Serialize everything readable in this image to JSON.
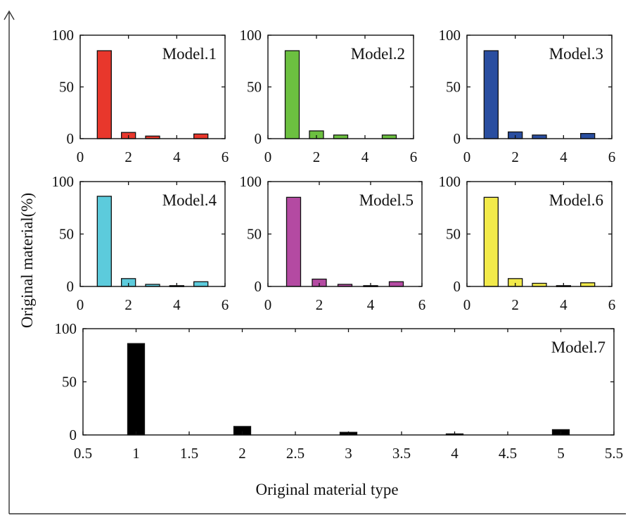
{
  "figure": {
    "xlabel": "Original material type",
    "ylabel": "Original material(%)"
  },
  "chart_data": [
    {
      "type": "bar",
      "title": "Model.1",
      "color": "#e8372c",
      "xlim": [
        0,
        6
      ],
      "ylim": [
        0,
        100
      ],
      "xticks": [
        "0",
        "2",
        "4",
        "6"
      ],
      "yticks": [
        "0",
        "50",
        "100"
      ],
      "x": [
        1,
        2,
        3,
        4,
        5
      ],
      "values": [
        85,
        6,
        2.5,
        0,
        4.5
      ]
    },
    {
      "type": "bar",
      "title": "Model.2",
      "color": "#6cc040",
      "xlim": [
        0,
        6
      ],
      "ylim": [
        0,
        100
      ],
      "xticks": [
        "0",
        "2",
        "4",
        "6"
      ],
      "yticks": [
        "0",
        "50",
        "100"
      ],
      "x": [
        1,
        2,
        3,
        4,
        5
      ],
      "values": [
        85,
        7.5,
        3.5,
        0,
        3.5
      ]
    },
    {
      "type": "bar",
      "title": "Model.3",
      "color": "#2a4ea0",
      "xlim": [
        0,
        6
      ],
      "ylim": [
        0,
        100
      ],
      "xticks": [
        "0",
        "2",
        "4",
        "6"
      ],
      "yticks": [
        "0",
        "50",
        "100"
      ],
      "x": [
        1,
        2,
        3,
        4,
        5
      ],
      "values": [
        85,
        6.5,
        3.5,
        0,
        5
      ]
    },
    {
      "type": "bar",
      "title": "Model.4",
      "color": "#5ccbdc",
      "xlim": [
        0,
        6
      ],
      "ylim": [
        0,
        100
      ],
      "xticks": [
        "0",
        "2",
        "4",
        "6"
      ],
      "yticks": [
        "0",
        "50",
        "100"
      ],
      "x": [
        1,
        2,
        3,
        4,
        5
      ],
      "values": [
        86,
        7.5,
        2,
        0.8,
        4.5
      ]
    },
    {
      "type": "bar",
      "title": "Model.5",
      "color": "#b44aa2",
      "xlim": [
        0,
        6
      ],
      "ylim": [
        0,
        100
      ],
      "xticks": [
        "0",
        "2",
        "4",
        "6"
      ],
      "yticks": [
        "0",
        "50",
        "100"
      ],
      "x": [
        1,
        2,
        3,
        4,
        5
      ],
      "values": [
        85,
        7,
        2,
        0.8,
        4.5
      ]
    },
    {
      "type": "bar",
      "title": "Model.6",
      "color": "#f2ea4a",
      "xlim": [
        0,
        6
      ],
      "ylim": [
        0,
        100
      ],
      "xticks": [
        "0",
        "2",
        "4",
        "6"
      ],
      "yticks": [
        "0",
        "50",
        "100"
      ],
      "x": [
        1,
        2,
        3,
        4,
        5
      ],
      "values": [
        85,
        7.5,
        3,
        0.8,
        3.5
      ]
    },
    {
      "type": "bar",
      "title": "Model.7",
      "color": "#000000",
      "xlim": [
        0.5,
        5.5
      ],
      "ylim": [
        0,
        100
      ],
      "xticks": [
        "0.5",
        "1",
        "1.5",
        "2",
        "2.5",
        "3",
        "3.5",
        "4",
        "4.5",
        "5",
        "5.5"
      ],
      "yticks": [
        "0",
        "50",
        "100"
      ],
      "x": [
        1,
        2,
        3,
        4,
        5
      ],
      "values": [
        86,
        8,
        2.5,
        1,
        5
      ]
    }
  ]
}
